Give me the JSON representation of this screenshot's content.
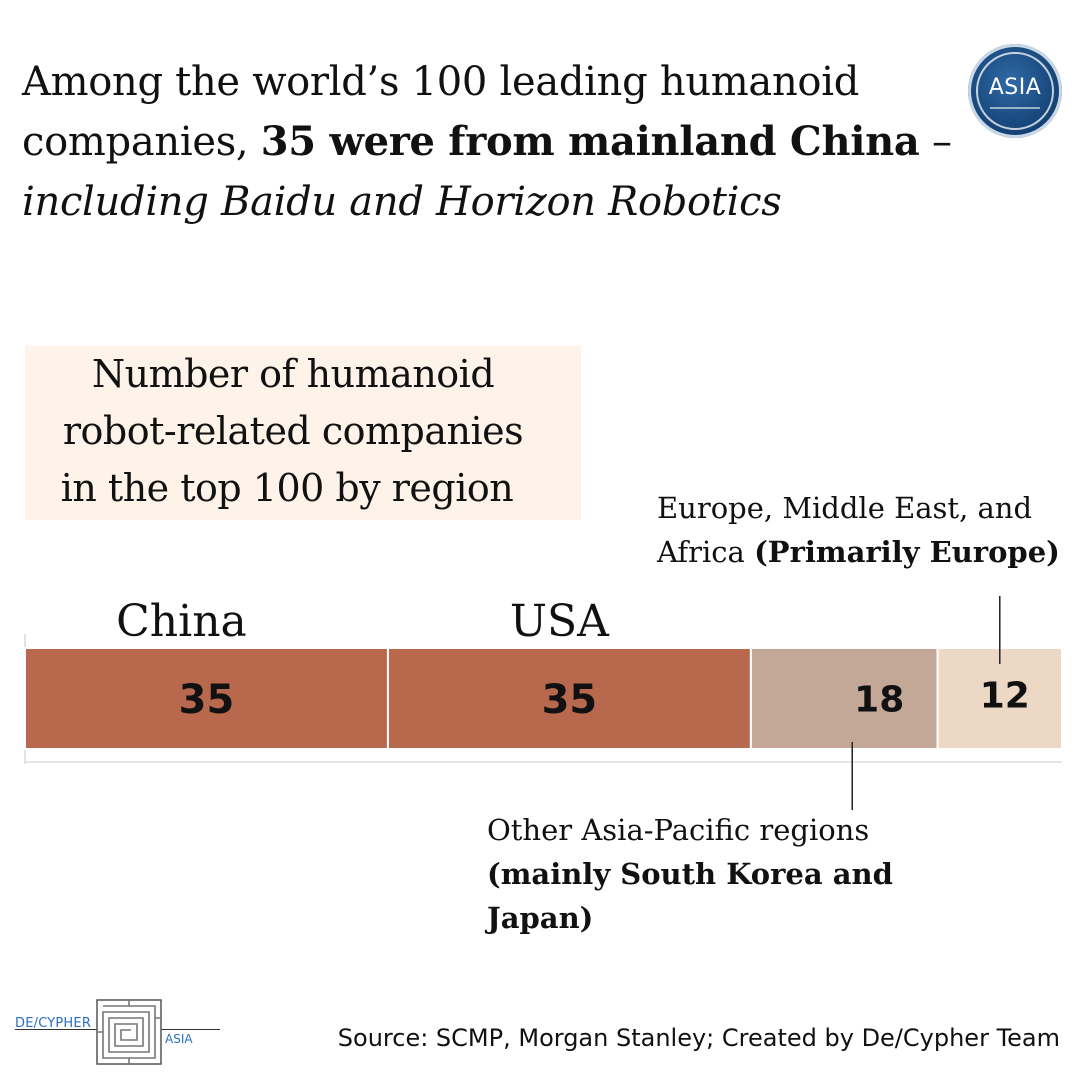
{
  "headline": {
    "part1": "Among the world’s 100 leading humanoid companies, ",
    "bold": "35 were from mainland China",
    "part2": " – ",
    "italic": "including Baidu and Horizon Robotics"
  },
  "badge": {
    "text": "ASIA",
    "color": "#17467a"
  },
  "subtitle": {
    "lines": [
      "Number of humanoid",
      "robot-related companies",
      "in the top 100 by region"
    ],
    "background": "#fdf3e8"
  },
  "chart_data": {
    "type": "bar",
    "orientation": "horizontal-stacked",
    "total": 100,
    "grid": false,
    "segments": [
      {
        "label": "China",
        "value": 35,
        "color": "#b8694d"
      },
      {
        "label": "USA",
        "value": 35,
        "color": "#b8694d"
      },
      {
        "label": "",
        "value": 18,
        "color": "#c3a797"
      },
      {
        "label": "",
        "value": 12,
        "color": "#edd8c5"
      }
    ]
  },
  "annotations": {
    "emea": {
      "line1": "Europe, Middle East, and",
      "line2_plain": "Africa ",
      "line2_bold": "(Primarily Europe)"
    },
    "apac": {
      "line1": "Other Asia-Pacific regions",
      "line2_bold": "(mainly South Korea and",
      "line3_bold": "Japan)"
    }
  },
  "footer": {
    "logo_left": "DE/CYPHER",
    "logo_right": "ASIA",
    "source": "Source: SCMP, Morgan Stanley; Created by De/Cypher Team"
  }
}
